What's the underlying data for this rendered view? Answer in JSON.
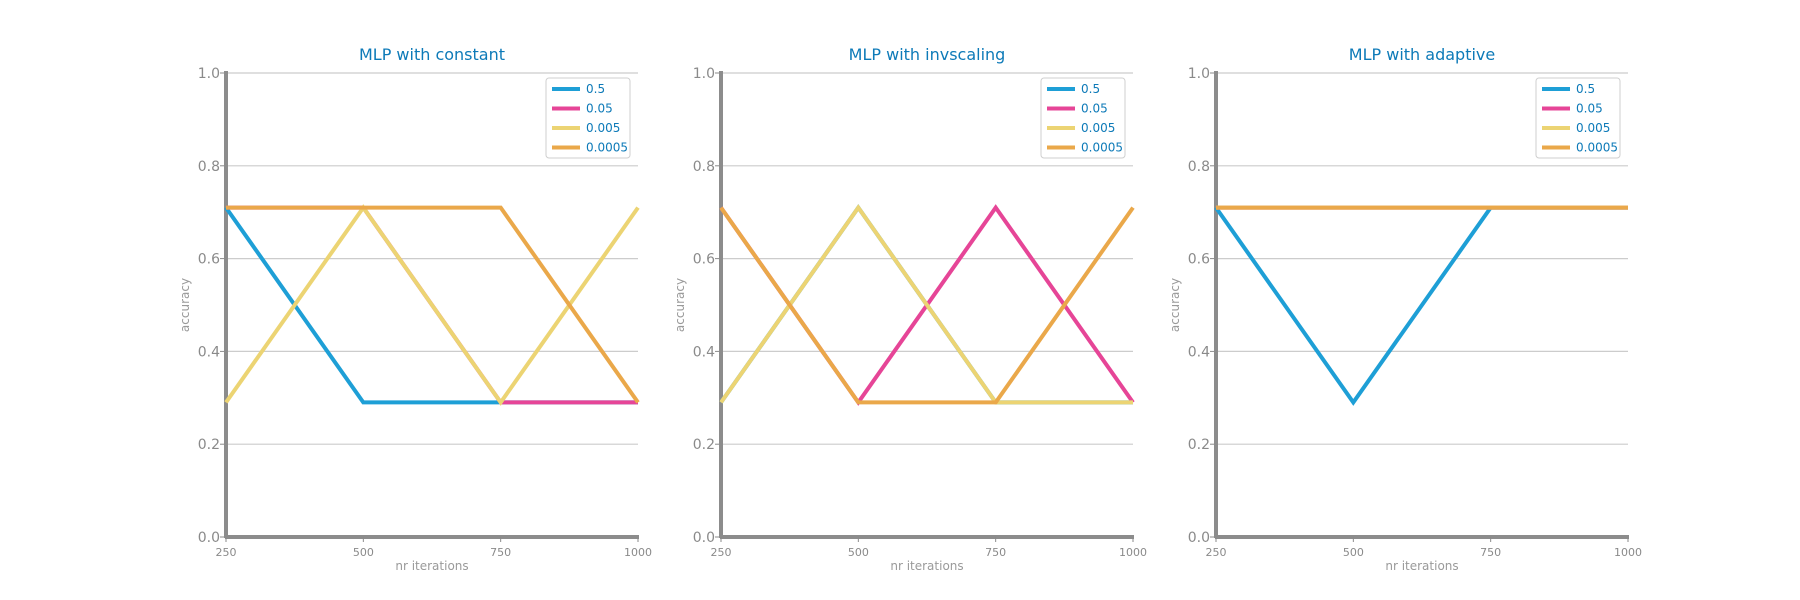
{
  "chart_data": [
    {
      "type": "line",
      "title": "MLP with constant",
      "xlabel": "nr iterations",
      "ylabel": "accuracy",
      "x": [
        250,
        500,
        750,
        1000
      ],
      "xlim": [
        250,
        1000
      ],
      "ylim": [
        0.0,
        1.0
      ],
      "yticks": [
        "0.0",
        "0.2",
        "0.4",
        "0.6",
        "0.8",
        "1.0"
      ],
      "grid": "horizontal",
      "legend": "top-right",
      "series": [
        {
          "name": "0.5",
          "color": "#1e9fd6",
          "values": [
            0.71,
            0.29,
            0.29,
            0.29
          ]
        },
        {
          "name": "0.05",
          "color": "#e64597",
          "values": [
            0.71,
            0.71,
            0.29,
            0.29
          ]
        },
        {
          "name": "0.005",
          "color": "#ecd473",
          "values": [
            0.29,
            0.71,
            0.29,
            0.71
          ]
        },
        {
          "name": "0.0005",
          "color": "#eaa84a",
          "values": [
            0.71,
            0.71,
            0.71,
            0.29
          ]
        }
      ]
    },
    {
      "type": "line",
      "title": "MLP with invscaling",
      "xlabel": "nr iterations",
      "ylabel": "accuracy",
      "x": [
        250,
        500,
        750,
        1000
      ],
      "xlim": [
        250,
        1000
      ],
      "ylim": [
        0.0,
        1.0
      ],
      "yticks": [
        "0.0",
        "0.2",
        "0.4",
        "0.6",
        "0.8",
        "1.0"
      ],
      "grid": "horizontal",
      "legend": "top-right",
      "series": [
        {
          "name": "0.5",
          "color": "#1e9fd6",
          "values": [
            0.29,
            0.71,
            0.29,
            0.29
          ]
        },
        {
          "name": "0.05",
          "color": "#e64597",
          "values": [
            0.71,
            0.29,
            0.71,
            0.29
          ]
        },
        {
          "name": "0.005",
          "color": "#ecd473",
          "values": [
            0.29,
            0.71,
            0.29,
            0.29
          ]
        },
        {
          "name": "0.0005",
          "color": "#eaa84a",
          "values": [
            0.71,
            0.29,
            0.29,
            0.71
          ]
        }
      ]
    },
    {
      "type": "line",
      "title": "MLP with adaptive",
      "xlabel": "nr iterations",
      "ylabel": "accuracy",
      "x": [
        250,
        500,
        750,
        1000
      ],
      "xlim": [
        250,
        1000
      ],
      "ylim": [
        0.0,
        1.0
      ],
      "yticks": [
        "0.0",
        "0.2",
        "0.4",
        "0.6",
        "0.8",
        "1.0"
      ],
      "grid": "horizontal",
      "legend": "top-right",
      "series": [
        {
          "name": "0.5",
          "color": "#1e9fd6",
          "values": [
            0.71,
            0.29,
            0.71,
            0.71
          ]
        },
        {
          "name": "0.05",
          "color": "#e64597",
          "values": [
            0.71,
            0.71,
            0.71,
            0.71
          ]
        },
        {
          "name": "0.005",
          "color": "#ecd473",
          "values": [
            0.71,
            0.71,
            0.71,
            0.71
          ]
        },
        {
          "name": "0.0005",
          "color": "#eaa84a",
          "values": [
            0.71,
            0.71,
            0.71,
            0.71
          ]
        }
      ]
    }
  ]
}
